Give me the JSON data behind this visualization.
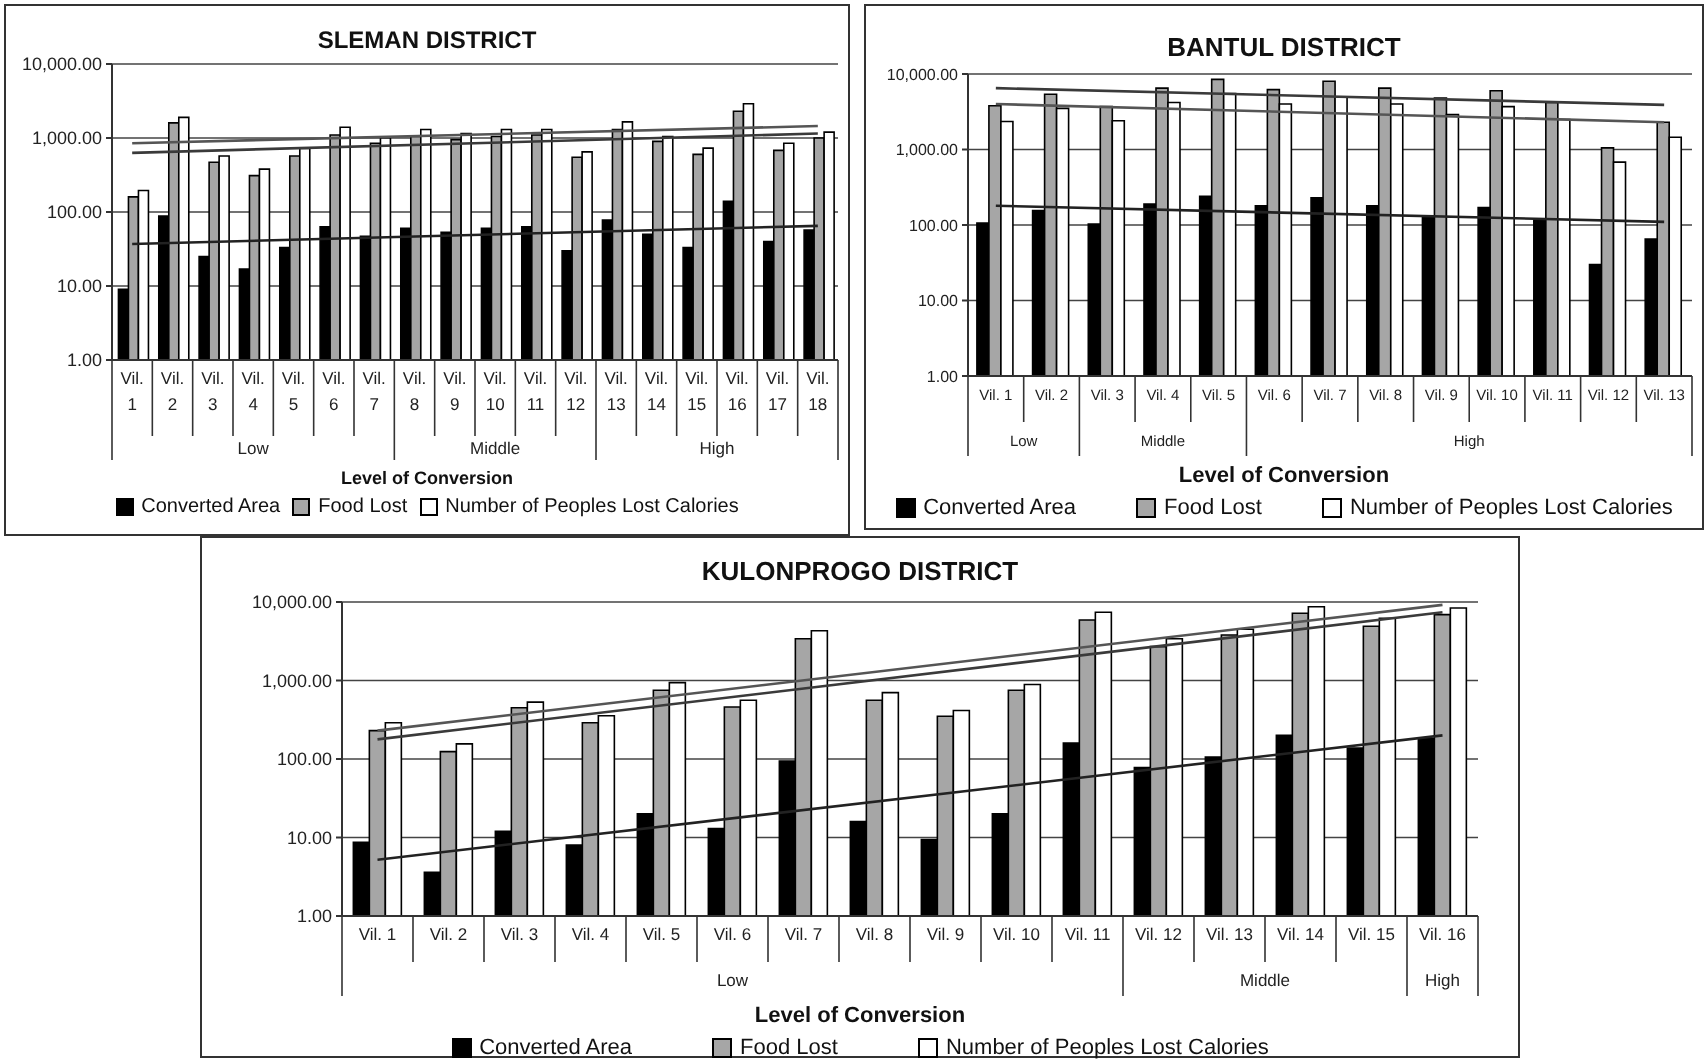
{
  "chart_data": [
    {
      "type": "bar",
      "title": "SLEMAN DISTRICT",
      "xlabel": "Level of Conversion",
      "categories": [
        "Vil. 1",
        "Vil. 2",
        "Vil. 3",
        "Vil. 4",
        "Vil. 5",
        "Vil. 6",
        "Vil. 7",
        "Vil. 8",
        "Vil. 9",
        "Vil. 10",
        "Vil. 11",
        "Vil. 12",
        "Vil. 13",
        "Vil. 14",
        "Vil. 15",
        "Vil. 16",
        "Vil. 17",
        "Vil. 18"
      ],
      "series": [
        {
          "name": "Converted Area",
          "color": "#000000",
          "values": [
            9,
            88,
            25,
            17,
            33,
            63,
            47,
            60,
            53,
            60,
            63,
            30,
            78,
            50,
            33,
            140,
            40,
            57
          ]
        },
        {
          "name": "Food Lost",
          "color": "#a6a6a6",
          "values": [
            160,
            1600,
            470,
            310,
            570,
            1100,
            850,
            1050,
            950,
            1050,
            1100,
            550,
            1300,
            900,
            600,
            2300,
            680,
            1000
          ]
        },
        {
          "name": "Number of Peoples Lost Calories",
          "color": "#ffffff",
          "values": [
            195,
            1900,
            570,
            380,
            720,
            1400,
            1000,
            1300,
            1150,
            1300,
            1300,
            650,
            1650,
            1050,
            730,
            2900,
            850,
            1200
          ]
        },
        {
          "type": "line",
          "color": "#222222",
          "x": [
            "Vil. 1",
            "Vil. 18"
          ],
          "values": [
            37,
            65
          ]
        },
        {
          "type": "line",
          "color": "#3a3a3a",
          "x": [
            "Vil. 1",
            "Vil. 18"
          ],
          "values": [
            630,
            1150
          ]
        },
        {
          "type": "line",
          "color": "#555555",
          "x": [
            "Vil. 1",
            "Vil. 18"
          ],
          "values": [
            850,
            1450
          ]
        }
      ],
      "annotations": [
        "Low",
        "Middle",
        "High"
      ],
      "ylim": [
        1,
        10000
      ],
      "yticks": [
        {
          "value": 1,
          "label": "1.00"
        },
        {
          "value": 10,
          "label": "10.00"
        },
        {
          "value": 100,
          "label": "100.00"
        },
        {
          "value": 1000,
          "label": "1,000.00"
        },
        {
          "value": 10000,
          "label": "10,000.00"
        }
      ],
      "log": "y",
      "grid": "y",
      "legend": "bottom"
    },
    {
      "type": "bar",
      "title": "BANTUL DISTRICT",
      "xlabel": "Level of Conversion",
      "categories": [
        "Vil. 1",
        "Vil. 2",
        "Vil. 3",
        "Vil. 4",
        "Vil. 5",
        "Vil. 6",
        "Vil. 7",
        "Vil. 8",
        "Vil. 9",
        "Vil. 10",
        "Vil. 11",
        "Vil. 12",
        "Vil. 13"
      ],
      "series": [
        {
          "name": "Converted Area",
          "color": "#000000",
          "values": [
            106,
            155,
            103,
            190,
            240,
            180,
            230,
            180,
            130,
            170,
            115,
            30,
            65
          ]
        },
        {
          "name": "Food Lost",
          "color": "#a6a6a6",
          "values": [
            3800,
            5400,
            3700,
            6500,
            8500,
            6200,
            8000,
            6500,
            4800,
            6000,
            4200,
            1050,
            2300
          ]
        },
        {
          "name": "Number of Peoples Lost Calories",
          "color": "#ffffff",
          "values": [
            2350,
            3500,
            2400,
            4200,
            5500,
            4000,
            5000,
            4000,
            2900,
            3700,
            2500,
            680,
            1450
          ]
        },
        {
          "type": "line",
          "color": "#222222",
          "x": [
            "Vil. 1",
            "Vil. 13"
          ],
          "values": [
            180,
            110
          ]
        },
        {
          "type": "line",
          "color": "#3a3a3a",
          "x": [
            "Vil. 1",
            "Vil. 13"
          ],
          "values": [
            6500,
            3900
          ]
        },
        {
          "type": "line",
          "color": "#555555",
          "x": [
            "Vil. 1",
            "Vil. 13"
          ],
          "values": [
            4000,
            2300
          ]
        }
      ],
      "annotations": [
        "Low",
        "Middle",
        "High"
      ],
      "ylim": [
        1,
        10000
      ],
      "yticks": [
        {
          "value": 1,
          "label": "1.00"
        },
        {
          "value": 10,
          "label": "10.00"
        },
        {
          "value": 100,
          "label": "100.00"
        },
        {
          "value": 1000,
          "label": "1,000.00"
        },
        {
          "value": 10000,
          "label": "10,000.00"
        }
      ],
      "log": "y",
      "grid": "y",
      "legend": "bottom"
    },
    {
      "type": "bar",
      "title": "KULONPROGO DISTRICT",
      "xlabel": "Level of Conversion",
      "categories": [
        "Vil. 1",
        "Vil. 2",
        "Vil. 3",
        "Vil. 4",
        "Vil. 5",
        "Vil. 6",
        "Vil. 7",
        "Vil. 8",
        "Vil. 9",
        "Vil. 10",
        "Vil. 11",
        "Vil. 12",
        "Vil. 13",
        "Vil. 14",
        "Vil. 15",
        "Vil. 16"
      ],
      "series": [
        {
          "name": "Converted Area",
          "color": "#000000",
          "values": [
            8.7,
            3.6,
            12,
            8,
            20,
            13,
            94,
            16,
            9.4,
            20,
            160,
            78,
            106,
            200,
            138,
            182
          ]
        },
        {
          "name": "Food Lost",
          "color": "#a6a6a6",
          "values": [
            230,
            124,
            450,
            290,
            750,
            460,
            3400,
            560,
            350,
            750,
            5900,
            2700,
            3800,
            7200,
            4900,
            6900
          ]
        },
        {
          "name": "Number of Peoples Lost Calories",
          "color": "#ffffff",
          "values": [
            290,
            156,
            530,
            355,
            940,
            560,
            4300,
            700,
            415,
            890,
            7400,
            3400,
            4500,
            8700,
            6200,
            8400
          ]
        },
        {
          "type": "line",
          "color": "#222222",
          "x": [
            "Vil. 1",
            "Vil. 16"
          ],
          "values": [
            5.2,
            200
          ]
        },
        {
          "type": "line",
          "color": "#3a3a3a",
          "x": [
            "Vil. 1",
            "Vil. 16"
          ],
          "values": [
            178,
            7400
          ]
        },
        {
          "type": "line",
          "color": "#555555",
          "x": [
            "Vil. 1",
            "Vil. 16"
          ],
          "values": [
            230,
            9200
          ]
        }
      ],
      "annotations": [
        "Low",
        "Middle",
        "High"
      ],
      "ylim": [
        1,
        10000
      ],
      "yticks": [
        {
          "value": 1,
          "label": "1.00"
        },
        {
          "value": 10,
          "label": "10.00"
        },
        {
          "value": 100,
          "label": "100.00"
        },
        {
          "value": 1000,
          "label": "1,000.00"
        },
        {
          "value": 10000,
          "label": "10,000.00"
        }
      ],
      "log": "y",
      "grid": "y",
      "legend": "bottom"
    }
  ]
}
